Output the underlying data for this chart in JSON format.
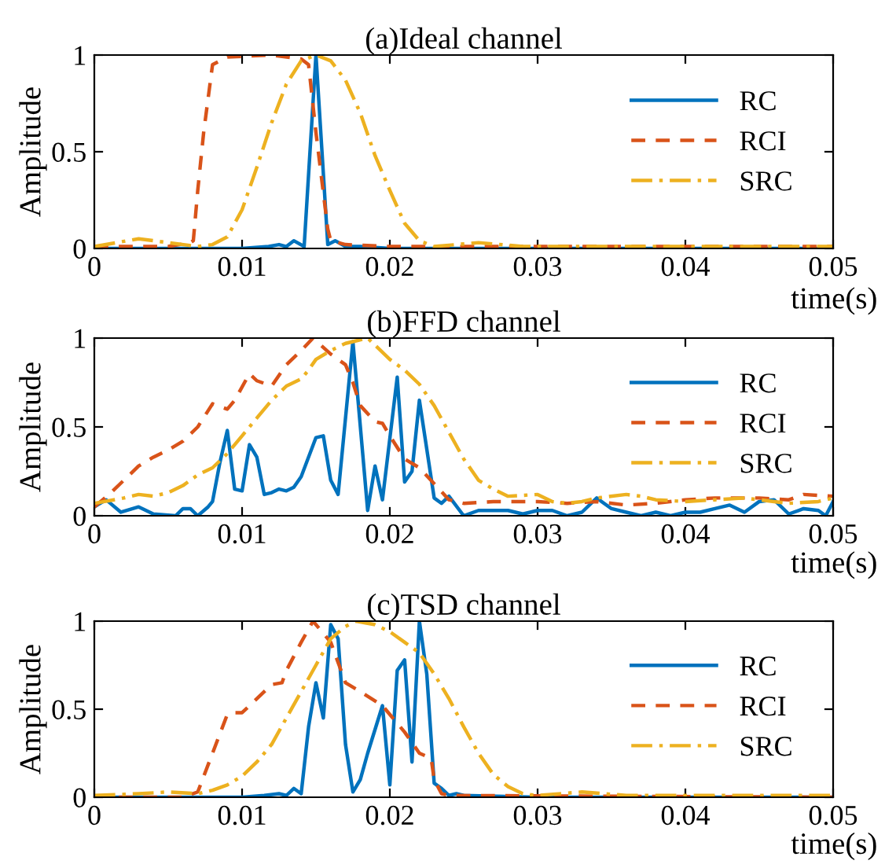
{
  "chart_data": [
    {
      "type": "line",
      "title": "(a)Ideal channel",
      "xlabel": "time(s)",
      "ylabel": "Amplitude",
      "xlim": [
        0,
        0.05
      ],
      "xticks": [
        0,
        0.01,
        0.02,
        0.03,
        0.04,
        0.05
      ],
      "ylim": [
        0,
        1
      ],
      "yticks": [
        0,
        0.5,
        1
      ],
      "legend": "top right",
      "grid": false,
      "series": [
        {
          "name": "RC",
          "color": "#0072bd",
          "line_style": "solid",
          "x": [
            0,
            0.005,
            0.01,
            0.0118,
            0.0125,
            0.013,
            0.0135,
            0.0142,
            0.015,
            0.0158,
            0.0163,
            0.017,
            0.018,
            0.02,
            0.03,
            0.04,
            0.05
          ],
          "values": [
            0,
            0,
            0,
            0.01,
            0.02,
            0.01,
            0.04,
            0.01,
            1.0,
            0.02,
            0.04,
            0.01,
            0.01,
            0,
            0,
            0,
            0
          ]
        },
        {
          "name": "RCI",
          "color": "#d95319",
          "line_style": "dashed",
          "x": [
            0,
            0.005,
            0.0065,
            0.0067,
            0.007,
            0.0074,
            0.008,
            0.009,
            0.012,
            0.014,
            0.0145,
            0.015,
            0.0158,
            0.016,
            0.017,
            0.02,
            0.05
          ],
          "values": [
            0.01,
            0.01,
            0.03,
            0.04,
            0.3,
            0.6,
            0.95,
            0.99,
            1.0,
            0.98,
            0.95,
            0.6,
            0.1,
            0.04,
            0.02,
            0.01,
            0.01
          ]
        },
        {
          "name": "SRC",
          "color": "#edb120",
          "line_style": "dashdot",
          "x": [
            0,
            0.003,
            0.005,
            0.007,
            0.008,
            0.009,
            0.01,
            0.011,
            0.012,
            0.013,
            0.014,
            0.015,
            0.016,
            0.017,
            0.018,
            0.019,
            0.02,
            0.021,
            0.022,
            0.023,
            0.026,
            0.029,
            0.035,
            0.045,
            0.05
          ],
          "values": [
            0.01,
            0.05,
            0.03,
            0.01,
            0.02,
            0.06,
            0.2,
            0.42,
            0.65,
            0.85,
            0.97,
            1.0,
            0.97,
            0.87,
            0.7,
            0.48,
            0.3,
            0.13,
            0.04,
            0.01,
            0.03,
            0.01,
            0.01,
            0.01,
            0.01
          ]
        }
      ]
    },
    {
      "type": "line",
      "title": "(b)FFD channel",
      "xlabel": "time(s)",
      "ylabel": "Amplitude",
      "xlim": [
        0,
        0.05
      ],
      "xticks": [
        0,
        0.01,
        0.02,
        0.03,
        0.04,
        0.05
      ],
      "ylim": [
        0,
        1
      ],
      "yticks": [
        0,
        0.5,
        1
      ],
      "legend": "top right",
      "grid": false,
      "series": [
        {
          "name": "RC",
          "color": "#0072bd",
          "line_style": "solid",
          "x": [
            0,
            0.0008,
            0.0018,
            0.003,
            0.004,
            0.0055,
            0.006,
            0.0065,
            0.007,
            0.0077,
            0.008,
            0.0085,
            0.009,
            0.0095,
            0.01,
            0.0105,
            0.011,
            0.0115,
            0.012,
            0.0125,
            0.013,
            0.0135,
            0.014,
            0.015,
            0.0155,
            0.016,
            0.0165,
            0.0175,
            0.0185,
            0.019,
            0.0195,
            0.0205,
            0.021,
            0.0215,
            0.022,
            0.023,
            0.0235,
            0.024,
            0.025,
            0.026,
            0.028,
            0.029,
            0.03,
            0.031,
            0.032,
            0.033,
            0.034,
            0.035,
            0.036,
            0.037,
            0.038,
            0.039,
            0.04,
            0.041,
            0.042,
            0.043,
            0.044,
            0.045,
            0.046,
            0.047,
            0.048,
            0.049,
            0.0495,
            0.05
          ],
          "values": [
            0.05,
            0.09,
            0.02,
            0.05,
            0.01,
            0.0,
            0.04,
            0.04,
            0.0,
            0.05,
            0.08,
            0.3,
            0.48,
            0.15,
            0.14,
            0.4,
            0.33,
            0.12,
            0.13,
            0.15,
            0.14,
            0.16,
            0.22,
            0.44,
            0.45,
            0.2,
            0.12,
            0.98,
            0.03,
            0.28,
            0.09,
            0.78,
            0.19,
            0.25,
            0.65,
            0.1,
            0.07,
            0.11,
            0.0,
            0.03,
            0.03,
            0.01,
            0.03,
            0.03,
            0.0,
            0.02,
            0.1,
            0.04,
            0.02,
            0.0,
            0.02,
            0.0,
            0.02,
            0.02,
            0.04,
            0.06,
            0.02,
            0.08,
            0.09,
            0.01,
            0.04,
            0.03,
            0.0,
            0.08
          ]
        },
        {
          "name": "RCI",
          "color": "#d95319",
          "line_style": "dashed",
          "x": [
            0,
            0.001,
            0.002,
            0.003,
            0.004,
            0.005,
            0.006,
            0.007,
            0.008,
            0.009,
            0.0095,
            0.0105,
            0.011,
            0.012,
            0.013,
            0.014,
            0.0148,
            0.016,
            0.017,
            0.0175,
            0.018,
            0.019,
            0.0195,
            0.02,
            0.021,
            0.022,
            0.023,
            0.024,
            0.025,
            0.027,
            0.03,
            0.032,
            0.034,
            0.036,
            0.038,
            0.04,
            0.042,
            0.045,
            0.047,
            0.048,
            0.05
          ],
          "values": [
            0.05,
            0.12,
            0.2,
            0.28,
            0.33,
            0.37,
            0.42,
            0.5,
            0.63,
            0.6,
            0.65,
            0.8,
            0.76,
            0.73,
            0.85,
            0.93,
            1.0,
            0.91,
            0.85,
            0.75,
            0.62,
            0.53,
            0.52,
            0.45,
            0.32,
            0.27,
            0.18,
            0.09,
            0.07,
            0.08,
            0.08,
            0.07,
            0.08,
            0.06,
            0.07,
            0.09,
            0.1,
            0.1,
            0.09,
            0.12,
            0.11
          ]
        },
        {
          "name": "SRC",
          "color": "#edb120",
          "line_style": "dashdot",
          "x": [
            0,
            0.002,
            0.003,
            0.004,
            0.005,
            0.006,
            0.007,
            0.008,
            0.009,
            0.01,
            0.011,
            0.012,
            0.013,
            0.014,
            0.0145,
            0.015,
            0.016,
            0.017,
            0.0175,
            0.0185,
            0.02,
            0.021,
            0.022,
            0.023,
            0.024,
            0.025,
            0.026,
            0.027,
            0.028,
            0.03,
            0.031,
            0.032,
            0.033,
            0.034,
            0.036,
            0.037,
            0.038,
            0.04,
            0.042,
            0.044,
            0.046,
            0.047,
            0.049,
            0.05
          ],
          "values": [
            0.07,
            0.1,
            0.12,
            0.11,
            0.13,
            0.17,
            0.23,
            0.27,
            0.35,
            0.45,
            0.55,
            0.65,
            0.73,
            0.77,
            0.82,
            0.88,
            0.93,
            0.97,
            0.98,
            1.0,
            0.88,
            0.82,
            0.74,
            0.62,
            0.47,
            0.32,
            0.2,
            0.15,
            0.11,
            0.12,
            0.08,
            0.07,
            0.08,
            0.1,
            0.12,
            0.11,
            0.09,
            0.08,
            0.09,
            0.1,
            0.08,
            0.07,
            0.08,
            0.1
          ]
        }
      ]
    },
    {
      "type": "line",
      "title": "(c)TSD channel",
      "xlabel": "time(s)",
      "ylabel": "Amplitude",
      "xlim": [
        0,
        0.05
      ],
      "xticks": [
        0,
        0.01,
        0.02,
        0.03,
        0.04,
        0.05
      ],
      "ylim": [
        0,
        1
      ],
      "yticks": [
        0,
        0.5,
        1
      ],
      "legend": "top right",
      "grid": false,
      "series": [
        {
          "name": "RC",
          "color": "#0072bd",
          "line_style": "solid",
          "x": [
            0,
            0.01,
            0.0115,
            0.0125,
            0.013,
            0.0135,
            0.014,
            0.0145,
            0.015,
            0.0155,
            0.016,
            0.0165,
            0.017,
            0.0175,
            0.018,
            0.0185,
            0.0195,
            0.02,
            0.0205,
            0.021,
            0.0215,
            0.022,
            0.0225,
            0.023,
            0.0235,
            0.024,
            0.0245,
            0.025,
            0.03,
            0.05
          ],
          "values": [
            0,
            0,
            0.01,
            0.02,
            0.01,
            0.05,
            0.02,
            0.4,
            0.65,
            0.45,
            0.98,
            0.9,
            0.3,
            0.03,
            0.1,
            0.25,
            0.52,
            0.07,
            0.72,
            0.78,
            0.2,
            1.0,
            0.7,
            0.08,
            0.05,
            0.01,
            0.02,
            0.01,
            0,
            0
          ]
        },
        {
          "name": "RCI",
          "color": "#d95319",
          "line_style": "dashed",
          "x": [
            0,
            0.006,
            0.007,
            0.008,
            0.009,
            0.0095,
            0.01,
            0.011,
            0.012,
            0.0127,
            0.013,
            0.014,
            0.0148,
            0.016,
            0.017,
            0.018,
            0.0195,
            0.02,
            0.021,
            0.022,
            0.0228,
            0.023,
            0.0235,
            0.024,
            0.05
          ],
          "values": [
            0,
            0,
            0.03,
            0.25,
            0.47,
            0.48,
            0.48,
            0.56,
            0.64,
            0.65,
            0.72,
            0.88,
            1.0,
            0.88,
            0.65,
            0.6,
            0.52,
            0.47,
            0.37,
            0.25,
            0.22,
            0.1,
            0.02,
            0.01,
            0
          ]
        },
        {
          "name": "SRC",
          "color": "#edb120",
          "line_style": "dashdot",
          "x": [
            0,
            0.003,
            0.005,
            0.007,
            0.008,
            0.009,
            0.01,
            0.011,
            0.012,
            0.013,
            0.014,
            0.015,
            0.016,
            0.017,
            0.0177,
            0.019,
            0.02,
            0.021,
            0.022,
            0.023,
            0.024,
            0.025,
            0.026,
            0.027,
            0.028,
            0.029,
            0.03,
            0.033,
            0.036,
            0.04,
            0.05
          ],
          "values": [
            0.01,
            0.02,
            0.03,
            0.02,
            0.04,
            0.07,
            0.12,
            0.2,
            0.3,
            0.45,
            0.6,
            0.75,
            0.9,
            0.97,
            1.0,
            0.98,
            0.94,
            0.88,
            0.82,
            0.7,
            0.56,
            0.4,
            0.25,
            0.13,
            0.06,
            0.02,
            0.01,
            0.03,
            0.01,
            0.01,
            0.01
          ]
        }
      ]
    }
  ]
}
